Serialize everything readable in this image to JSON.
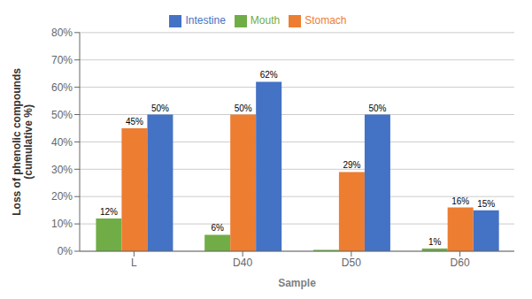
{
  "chart_data": {
    "type": "bar",
    "xlabel": "Sample",
    "ylabel": "Loss of phenolic compounds\n(cumulative %)",
    "categories": [
      "L",
      "D40",
      "D50",
      "D60"
    ],
    "series": [
      {
        "name": "Mouth",
        "color": "#70ad47",
        "values": [
          0.12,
          0.06,
          0.005,
          0.01
        ],
        "value_labels": [
          "12%",
          "6%",
          null,
          "1%"
        ]
      },
      {
        "name": "Stomach",
        "color": "#ed7d31",
        "values": [
          0.45,
          0.5,
          0.29,
          0.16
        ],
        "value_labels": [
          "45%",
          "50%",
          "29%",
          "16%"
        ]
      },
      {
        "name": "Intestine",
        "color": "#4472c4",
        "values": [
          0.5,
          0.62,
          0.5,
          0.15
        ],
        "value_labels": [
          "50%",
          "62%",
          "50%",
          "15%"
        ]
      }
    ],
    "ylim": [
      0,
      0.8
    ],
    "yticks": [
      {
        "value": 0.0,
        "label": "0%"
      },
      {
        "value": 0.1,
        "label": "10%"
      },
      {
        "value": 0.2,
        "label": "20%"
      },
      {
        "value": 0.3,
        "label": "30%"
      },
      {
        "value": 0.4,
        "label": "40%"
      },
      {
        "value": 0.5,
        "label": "50%"
      },
      {
        "value": 0.6,
        "label": "60%"
      },
      {
        "value": 0.7,
        "label": "70%"
      },
      {
        "value": 0.8,
        "label": "80%"
      }
    ],
    "grid": true,
    "legend": "top",
    "data_labels": true
  }
}
